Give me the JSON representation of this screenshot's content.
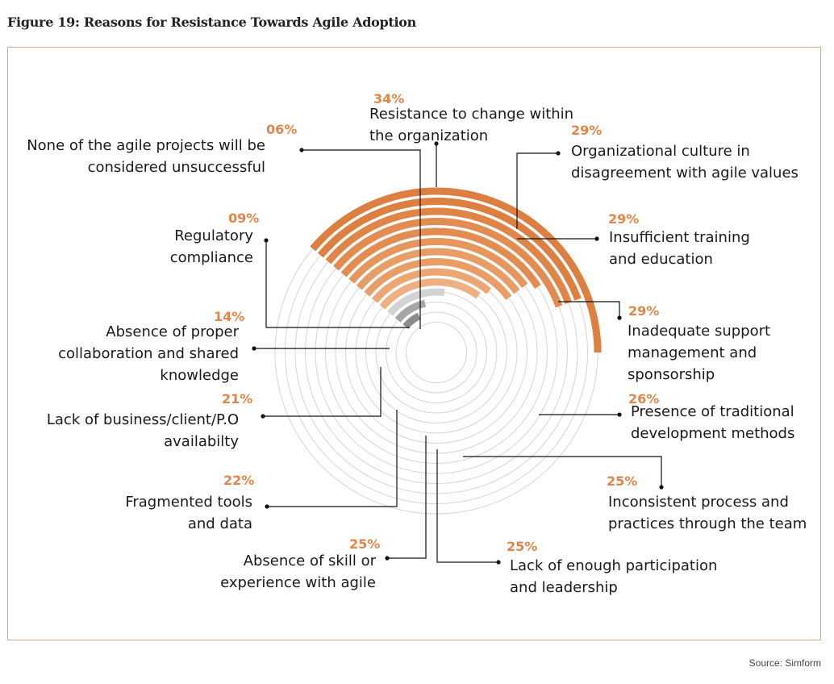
{
  "figure_title": "Figure 19: Reasons for Resistance Towards Agile Adoption",
  "source": "Source: Simform",
  "colors": {
    "frame": "#e2a67d",
    "ring_track": "#d4d4d4",
    "percent_text": "#e0864a",
    "orange_shades": [
      "#dd7f40",
      "#e08548",
      "#e38c52",
      "#e6955c",
      "#e89d67",
      "#eba673",
      "#eeb080"
    ],
    "gray_shades": [
      "#d3d3d3",
      "#a6a6a6",
      "#8c8c8c"
    ]
  },
  "chart_data": {
    "type": "radial bar",
    "title": "Figure 19: Reasons for Resistance Towards Agile Adoption",
    "max_value": 34,
    "items": [
      {
        "value": 34,
        "pct_label": "34%",
        "label": [
          "Resistance to change within",
          "the organization"
        ]
      },
      {
        "value": 29,
        "pct_label": "29%",
        "label": [
          "Organizational culture in",
          "disagreement with agile values"
        ]
      },
      {
        "value": 29,
        "pct_label": "29%",
        "label": [
          "Insufficient training",
          "and education"
        ]
      },
      {
        "value": 29,
        "pct_label": "29%",
        "label": [
          "Inadequate support",
          "management and",
          "sponsorship"
        ]
      },
      {
        "value": 26,
        "pct_label": "26%",
        "label": [
          "Presence of traditional",
          "development methods"
        ]
      },
      {
        "value": 25,
        "pct_label": "25%",
        "label": [
          "Inconsistent  process and",
          "practices through the team"
        ]
      },
      {
        "value": 25,
        "pct_label": "25%",
        "label": [
          "Lack of enough participation",
          "and leadership"
        ]
      },
      {
        "value": 25,
        "pct_label": "25%",
        "label": [
          "Absence of skill or",
          "experience with agile"
        ]
      },
      {
        "value": 22,
        "pct_label": "22%",
        "label": [
          "Fragmented tools",
          "and data"
        ]
      },
      {
        "value": 21,
        "pct_label": "21%",
        "label": [
          "Lack of business/client/P.O",
          "availabilty"
        ]
      },
      {
        "value": 14,
        "pct_label": "14%",
        "label": [
          "Absence of proper",
          "collaboration and shared",
          "knowledge"
        ]
      },
      {
        "value": 9,
        "pct_label": "09%",
        "label": [
          "Regulatory",
          "compliance"
        ]
      },
      {
        "value": 6,
        "pct_label": "06%",
        "label": [
          "None of the agile projects will be",
          "considered unsuccessful"
        ]
      }
    ]
  }
}
